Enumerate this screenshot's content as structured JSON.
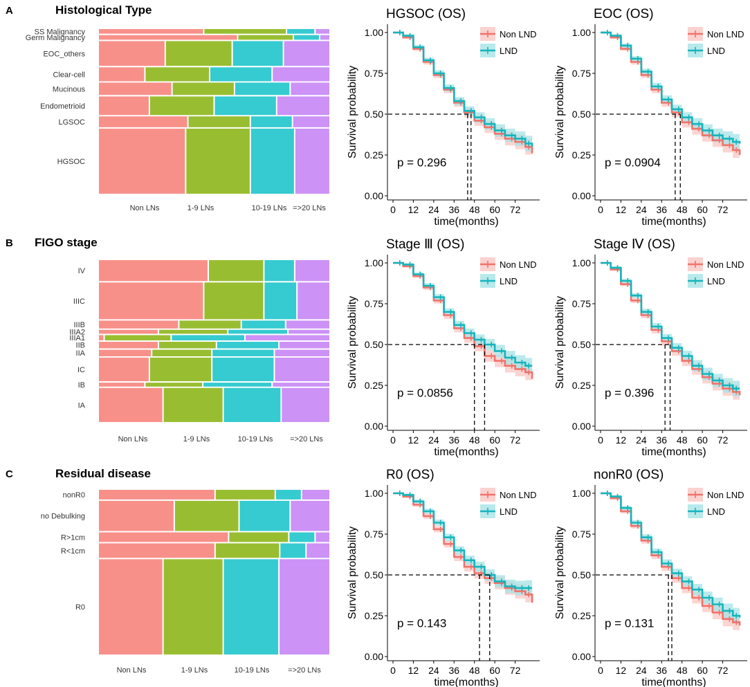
{
  "colors": {
    "non_lns": "#f8908a",
    "lns_1_9": "#99bd31",
    "lns_10_19": "#35cbd0",
    "lns_20plus": "#cc92f6",
    "non_lnd": "#f0736b",
    "lnd": "#16b4bc",
    "non_lnd_ci": "#f9c7c3",
    "lnd_ci": "#a6e3e6"
  },
  "panels": [
    {
      "letter": "A",
      "title": "Histological Type",
      "x_labels": [
        "Non LNs",
        "1-9 LNs",
        "10-19 LNs",
        "=>20 LNs"
      ]
    },
    {
      "letter": "B",
      "title": "FIGO stage",
      "x_labels": [
        "Non LNs",
        "1-9 LNs",
        "10-19 LNs",
        "=>20 LNs"
      ]
    },
    {
      "letter": "C",
      "title": "Residual disease",
      "x_labels": [
        "Non LNs",
        "1-9 LNs",
        "10-19 LNs",
        "=>20 LNs"
      ]
    }
  ],
  "chart_data": [
    {
      "type": "mosaic",
      "title": "Histological Type",
      "columns": [
        "Non LNs",
        "1-9 LNs",
        "10-19 LNs",
        "=>20 LNs"
      ],
      "rows": [
        {
          "label": "SS Malignancy",
          "weight": 0.3,
          "shares": [
            0.46,
            0.36,
            0.12,
            0.06
          ]
        },
        {
          "label": "Germ Malignancy",
          "weight": 0.3,
          "shares": [
            0.61,
            0.24,
            0.11,
            0.04
          ]
        },
        {
          "label": "EOC_others",
          "weight": 1.6,
          "shares": [
            0.29,
            0.29,
            0.22,
            0.2
          ]
        },
        {
          "label": "Clear-cell",
          "weight": 0.9,
          "shares": [
            0.2,
            0.28,
            0.27,
            0.25
          ]
        },
        {
          "label": "Mucinous",
          "weight": 0.8,
          "shares": [
            0.32,
            0.27,
            0.24,
            0.17
          ]
        },
        {
          "label": "Endometrioid",
          "weight": 1.2,
          "shares": [
            0.22,
            0.28,
            0.27,
            0.23
          ]
        },
        {
          "label": "LGSOC",
          "weight": 0.7,
          "shares": [
            0.39,
            0.27,
            0.18,
            0.16
          ]
        },
        {
          "label": "HGSOC",
          "weight": 4.2,
          "shares": [
            0.38,
            0.28,
            0.19,
            0.15
          ]
        }
      ]
    },
    {
      "type": "line",
      "title": "HGSOC (OS)",
      "xlabel": "time(months)",
      "ylabel": "Survival probability",
      "xlim": [
        0,
        84
      ],
      "ylim": [
        0,
        1
      ],
      "x_ticks": [
        0,
        12,
        24,
        36,
        48,
        60,
        72
      ],
      "y_ticks": [
        "0.00",
        "0.25",
        "0.50",
        "0.75",
        "1.00"
      ],
      "p_value": "p = 0.296",
      "legend": [
        "Non LND",
        "LND"
      ],
      "medians": [
        44,
        46
      ],
      "series": [
        {
          "name": "Non LND",
          "x": [
            0,
            6,
            12,
            18,
            24,
            30,
            36,
            42,
            48,
            54,
            60,
            66,
            72,
            78,
            82
          ],
          "y": [
            1.0,
            0.97,
            0.9,
            0.82,
            0.74,
            0.65,
            0.57,
            0.51,
            0.46,
            0.42,
            0.38,
            0.35,
            0.33,
            0.3,
            0.26
          ]
        },
        {
          "name": "LND",
          "x": [
            0,
            6,
            12,
            18,
            24,
            30,
            36,
            42,
            48,
            54,
            60,
            66,
            72,
            78,
            82
          ],
          "y": [
            1.0,
            0.98,
            0.91,
            0.83,
            0.75,
            0.66,
            0.58,
            0.52,
            0.48,
            0.44,
            0.4,
            0.37,
            0.35,
            0.32,
            0.3
          ]
        }
      ]
    },
    {
      "type": "line",
      "title": "EOC (OS)",
      "xlabel": "time(months)",
      "ylabel": "Survival probability",
      "xlim": [
        0,
        84
      ],
      "ylim": [
        0,
        1
      ],
      "x_ticks": [
        0,
        12,
        24,
        36,
        48,
        60,
        72
      ],
      "y_ticks": [
        "0.00",
        "0.25",
        "0.50",
        "0.75",
        "1.00"
      ],
      "p_value": "p = 0.0904",
      "legend": [
        "Non LND",
        "LND"
      ],
      "medians": [
        44,
        47
      ],
      "series": [
        {
          "name": "Non LND",
          "x": [
            0,
            6,
            12,
            18,
            24,
            30,
            36,
            42,
            48,
            54,
            60,
            66,
            72,
            78,
            82
          ],
          "y": [
            1.0,
            0.97,
            0.9,
            0.82,
            0.74,
            0.65,
            0.57,
            0.51,
            0.45,
            0.41,
            0.37,
            0.34,
            0.31,
            0.28,
            0.25
          ]
        },
        {
          "name": "LND",
          "x": [
            0,
            6,
            12,
            18,
            24,
            30,
            36,
            42,
            48,
            54,
            60,
            66,
            72,
            78,
            82
          ],
          "y": [
            1.0,
            0.98,
            0.92,
            0.84,
            0.76,
            0.67,
            0.59,
            0.53,
            0.48,
            0.44,
            0.4,
            0.37,
            0.35,
            0.33,
            0.32
          ]
        }
      ]
    },
    {
      "type": "mosaic",
      "title": "FIGO stage",
      "columns": [
        "Non LNs",
        "1-9 LNs",
        "10-19 LNs",
        "=>20 LNs"
      ],
      "rows": [
        {
          "label": "IV",
          "weight": 1.6,
          "shares": [
            0.48,
            0.24,
            0.13,
            0.15
          ]
        },
        {
          "label": "IIIC",
          "weight": 2.8,
          "shares": [
            0.46,
            0.26,
            0.14,
            0.14
          ]
        },
        {
          "label": "IIIB",
          "weight": 0.6,
          "shares": [
            0.35,
            0.27,
            0.19,
            0.19
          ]
        },
        {
          "label": "IIIA2",
          "weight": 0.3,
          "shares": [
            0.26,
            0.3,
            0.26,
            0.18
          ]
        },
        {
          "label": "IIIA1",
          "weight": 0.4,
          "shares": [
            0.02,
            0.29,
            0.32,
            0.37
          ]
        },
        {
          "label": "IIB",
          "weight": 0.5,
          "shares": [
            0.26,
            0.25,
            0.27,
            0.22
          ]
        },
        {
          "label": "IIA",
          "weight": 0.5,
          "shares": [
            0.23,
            0.26,
            0.27,
            0.24
          ]
        },
        {
          "label": "IC",
          "weight": 1.8,
          "shares": [
            0.22,
            0.27,
            0.27,
            0.24
          ]
        },
        {
          "label": "IB",
          "weight": 0.3,
          "shares": [
            0.2,
            0.25,
            0.3,
            0.25
          ]
        },
        {
          "label": "IA",
          "weight": 2.6,
          "shares": [
            0.28,
            0.26,
            0.25,
            0.21
          ]
        }
      ]
    },
    {
      "type": "line",
      "title": "Stage Ⅲ (OS)",
      "xlabel": "time(months)",
      "ylabel": "Survival probability",
      "xlim": [
        0,
        84
      ],
      "ylim": [
        0,
        1
      ],
      "x_ticks": [
        0,
        12,
        24,
        36,
        48,
        60,
        72
      ],
      "y_ticks": [
        "0.00",
        "0.25",
        "0.50",
        "0.75",
        "1.00"
      ],
      "p_value": "p = 0.0856",
      "legend": [
        "Non LND",
        "LND"
      ],
      "medians": [
        48,
        54
      ],
      "series": [
        {
          "name": "Non LND",
          "x": [
            0,
            6,
            12,
            18,
            24,
            30,
            36,
            42,
            48,
            54,
            60,
            66,
            72,
            78,
            82
          ],
          "y": [
            1.0,
            0.98,
            0.92,
            0.85,
            0.77,
            0.68,
            0.6,
            0.54,
            0.49,
            0.43,
            0.4,
            0.37,
            0.35,
            0.33,
            0.29
          ]
        },
        {
          "name": "LND",
          "x": [
            0,
            6,
            12,
            18,
            24,
            30,
            36,
            42,
            48,
            54,
            60,
            66,
            72,
            78,
            82
          ],
          "y": [
            1.0,
            0.99,
            0.93,
            0.86,
            0.79,
            0.7,
            0.62,
            0.57,
            0.53,
            0.5,
            0.46,
            0.42,
            0.39,
            0.37,
            0.37
          ]
        }
      ]
    },
    {
      "type": "line",
      "title": "Stage Ⅳ (OS)",
      "xlabel": "time(months)",
      "ylabel": "Survival probability",
      "xlim": [
        0,
        84
      ],
      "ylim": [
        0,
        1
      ],
      "x_ticks": [
        0,
        12,
        24,
        36,
        48,
        60,
        72
      ],
      "y_ticks": [
        "0.00",
        "0.25",
        "0.50",
        "0.75",
        "1.00"
      ],
      "p_value": "p = 0.396",
      "legend": [
        "Non LND",
        "LND"
      ],
      "medians": [
        38,
        41
      ],
      "series": [
        {
          "name": "Non LND",
          "x": [
            0,
            6,
            12,
            18,
            24,
            30,
            36,
            42,
            48,
            54,
            60,
            66,
            72,
            78,
            82
          ],
          "y": [
            1.0,
            0.96,
            0.87,
            0.77,
            0.68,
            0.59,
            0.52,
            0.46,
            0.4,
            0.35,
            0.3,
            0.26,
            0.23,
            0.21,
            0.19
          ]
        },
        {
          "name": "LND",
          "x": [
            0,
            6,
            12,
            18,
            24,
            30,
            36,
            42,
            48,
            54,
            60,
            66,
            72,
            78,
            82
          ],
          "y": [
            1.0,
            0.97,
            0.89,
            0.8,
            0.7,
            0.61,
            0.54,
            0.48,
            0.43,
            0.37,
            0.32,
            0.28,
            0.25,
            0.23,
            0.23
          ]
        }
      ]
    },
    {
      "type": "mosaic",
      "title": "Residual disease",
      "columns": [
        "Non LNs",
        "1-9 LNs",
        "10-19 LNs",
        "=>20 LNs"
      ],
      "rows": [
        {
          "label": "nonR0",
          "weight": 0.8,
          "shares": [
            0.51,
            0.26,
            0.11,
            0.12
          ]
        },
        {
          "label": "no Debulking",
          "weight": 2.5,
          "shares": [
            0.33,
            0.28,
            0.22,
            0.17
          ]
        },
        {
          "label": "R>1cm",
          "weight": 0.8,
          "shares": [
            0.57,
            0.26,
            0.11,
            0.06
          ]
        },
        {
          "label": "R<1cm",
          "weight": 1.2,
          "shares": [
            0.51,
            0.28,
            0.11,
            0.1
          ]
        },
        {
          "label": "R0",
          "weight": 7.9,
          "shares": [
            0.28,
            0.26,
            0.24,
            0.22
          ]
        }
      ]
    },
    {
      "type": "line",
      "title": "R0 (OS)",
      "xlabel": "time(months)",
      "ylabel": "Survival probability",
      "xlim": [
        0,
        84
      ],
      "ylim": [
        0,
        1
      ],
      "x_ticks": [
        0,
        12,
        24,
        36,
        48,
        60,
        72
      ],
      "y_ticks": [
        "0.00",
        "0.25",
        "0.50",
        "0.75",
        "1.00"
      ],
      "p_value": "p = 0.143",
      "legend": [
        "Non LND",
        "LND"
      ],
      "medians": [
        51,
        57
      ],
      "series": [
        {
          "name": "Non LND",
          "x": [
            0,
            6,
            12,
            18,
            24,
            30,
            36,
            42,
            48,
            54,
            60,
            66,
            72,
            78,
            82
          ],
          "y": [
            1.0,
            0.98,
            0.93,
            0.86,
            0.78,
            0.69,
            0.61,
            0.55,
            0.51,
            0.48,
            0.45,
            0.42,
            0.4,
            0.38,
            0.33
          ]
        },
        {
          "name": "LND",
          "x": [
            0,
            6,
            12,
            18,
            24,
            30,
            36,
            42,
            48,
            54,
            60,
            66,
            72,
            78,
            82
          ],
          "y": [
            1.0,
            0.99,
            0.95,
            0.89,
            0.82,
            0.73,
            0.65,
            0.59,
            0.55,
            0.5,
            0.46,
            0.43,
            0.42,
            0.42,
            0.42
          ]
        }
      ]
    },
    {
      "type": "line",
      "title": "nonR0 (OS)",
      "xlabel": "time(months)",
      "ylabel": "Survival probability",
      "xlim": [
        0,
        84
      ],
      "ylim": [
        0,
        1
      ],
      "x_ticks": [
        0,
        12,
        24,
        36,
        48,
        60,
        72
      ],
      "y_ticks": [
        "0.00",
        "0.25",
        "0.50",
        "0.75",
        "1.00"
      ],
      "p_value": "p = 0.131",
      "legend": [
        "Non LND",
        "LND"
      ],
      "medians": [
        40,
        42
      ],
      "series": [
        {
          "name": "Non LND",
          "x": [
            0,
            6,
            12,
            18,
            24,
            30,
            36,
            42,
            48,
            54,
            60,
            66,
            72,
            78,
            82
          ],
          "y": [
            1.0,
            0.97,
            0.89,
            0.8,
            0.71,
            0.62,
            0.55,
            0.48,
            0.42,
            0.36,
            0.31,
            0.27,
            0.23,
            0.21,
            0.19
          ]
        },
        {
          "name": "LND",
          "x": [
            0,
            6,
            12,
            18,
            24,
            30,
            36,
            42,
            48,
            54,
            60,
            66,
            72,
            78,
            82
          ],
          "y": [
            1.0,
            0.98,
            0.91,
            0.82,
            0.73,
            0.64,
            0.57,
            0.51,
            0.46,
            0.41,
            0.36,
            0.32,
            0.28,
            0.25,
            0.24
          ]
        }
      ]
    }
  ]
}
